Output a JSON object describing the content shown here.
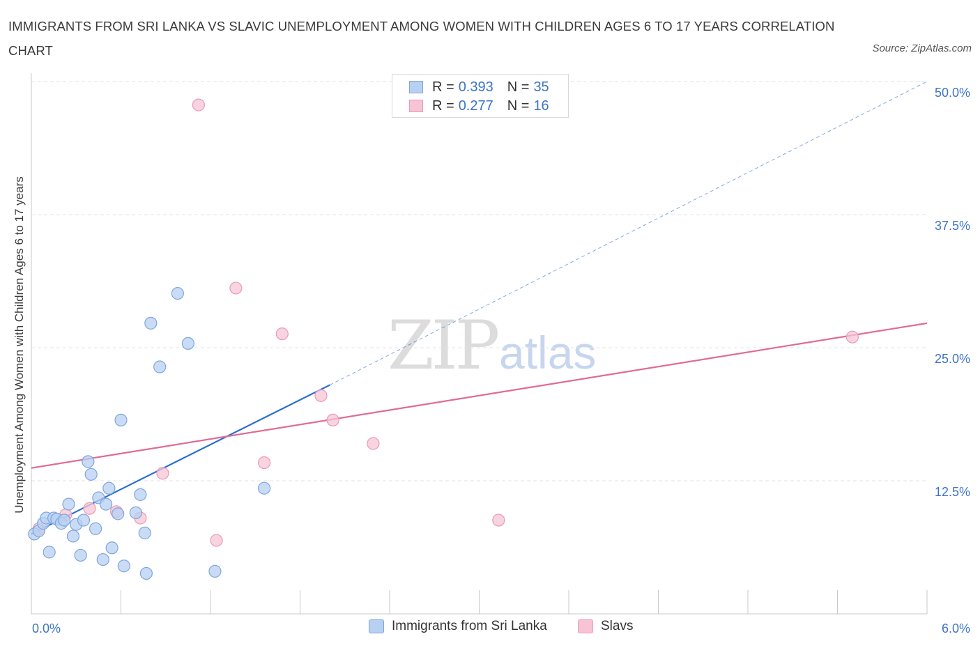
{
  "header": {
    "title": "IMMIGRANTS FROM SRI LANKA VS SLAVIC UNEMPLOYMENT AMONG WOMEN WITH CHILDREN AGES 6 TO 17 YEARS CORRELATION CHART",
    "source": "Source: ZipAtlas.com"
  },
  "watermark": {
    "zip": "ZIP",
    "atlas": "atlas"
  },
  "legend_top": {
    "rows": [
      {
        "r_label": "R =",
        "r_value": "0.393",
        "n_label": "N =",
        "n_value": "35"
      },
      {
        "r_label": "R =",
        "r_value": "0.277",
        "n_label": "N =",
        "n_value": "16"
      }
    ]
  },
  "legend_bottom": {
    "items": [
      {
        "label": "Immigrants from Sri Lanka"
      },
      {
        "label": "Slavs"
      }
    ]
  },
  "colors": {
    "blue_fill": "#b8d0f2",
    "blue_stroke": "#7ea6dc",
    "blue_line": "#2f6fcb",
    "pink_fill": "#f6c4d5",
    "pink_stroke": "#ea9ab6",
    "pink_line": "#e06b94",
    "tick_text": "#3d74c6",
    "grid": "#e3e3e3"
  },
  "chart_data": {
    "type": "scatter",
    "title": "IMMIGRANTS FROM SRI LANKA VS SLAVIC UNEMPLOYMENT AMONG WOMEN WITH CHILDREN AGES 6 TO 17 YEARS CORRELATION CHART",
    "xlabel": "",
    "ylabel": "Unemployment Among Women with Children Ages 6 to 17 years",
    "xlim": [
      0,
      6
    ],
    "ylim": [
      0,
      50
    ],
    "x_tick_labels": [
      "0.0%",
      "6.0%"
    ],
    "y_tick_labels": [
      "12.5%",
      "25.0%",
      "37.5%",
      "50.0%"
    ],
    "y_ticks": [
      12.5,
      25,
      37.5,
      50
    ],
    "grid": true,
    "series": [
      {
        "name": "Immigrants from Sri Lanka",
        "r": 0.393,
        "n": 35,
        "points": [
          [
            0.02,
            7.5
          ],
          [
            0.05,
            7.8
          ],
          [
            0.08,
            8.5
          ],
          [
            0.1,
            9.0
          ],
          [
            0.12,
            5.8
          ],
          [
            0.15,
            9.0
          ],
          [
            0.17,
            8.9
          ],
          [
            0.2,
            8.5
          ],
          [
            0.22,
            8.8
          ],
          [
            0.25,
            10.3
          ],
          [
            0.28,
            7.3
          ],
          [
            0.3,
            8.4
          ],
          [
            0.33,
            5.5
          ],
          [
            0.35,
            8.8
          ],
          [
            0.38,
            14.3
          ],
          [
            0.4,
            13.1
          ],
          [
            0.43,
            8.0
          ],
          [
            0.45,
            10.9
          ],
          [
            0.48,
            5.1
          ],
          [
            0.5,
            10.3
          ],
          [
            0.52,
            11.8
          ],
          [
            0.54,
            6.2
          ],
          [
            0.58,
            9.4
          ],
          [
            0.6,
            18.2
          ],
          [
            0.62,
            4.5
          ],
          [
            0.7,
            9.5
          ],
          [
            0.73,
            11.2
          ],
          [
            0.76,
            7.6
          ],
          [
            0.77,
            3.8
          ],
          [
            0.8,
            27.3
          ],
          [
            0.86,
            23.2
          ],
          [
            0.98,
            30.1
          ],
          [
            1.05,
            25.4
          ],
          [
            1.23,
            4.0
          ],
          [
            1.56,
            11.8
          ]
        ],
        "trend": {
          "x0": 0.0,
          "y0": 7.5,
          "x1": 2.0,
          "y1": 21.5,
          "dashed_to_x": 6.0,
          "dashed_to_y": 50.0
        }
      },
      {
        "name": "Slavs",
        "r": 0.277,
        "n": 16,
        "points": [
          [
            0.05,
            8.0
          ],
          [
            0.23,
            9.3
          ],
          [
            0.39,
            9.9
          ],
          [
            0.57,
            9.6
          ],
          [
            0.73,
            9.0
          ],
          [
            0.88,
            13.2
          ],
          [
            1.12,
            47.8
          ],
          [
            1.24,
            6.9
          ],
          [
            1.37,
            30.6
          ],
          [
            1.56,
            14.2
          ],
          [
            1.68,
            26.3
          ],
          [
            1.94,
            20.5
          ],
          [
            2.02,
            18.2
          ],
          [
            2.29,
            16.0
          ],
          [
            3.13,
            8.8
          ],
          [
            5.5,
            26.0
          ]
        ],
        "trend": {
          "x0": 0.0,
          "y0": 13.7,
          "x1": 6.0,
          "y1": 27.3
        }
      }
    ]
  }
}
